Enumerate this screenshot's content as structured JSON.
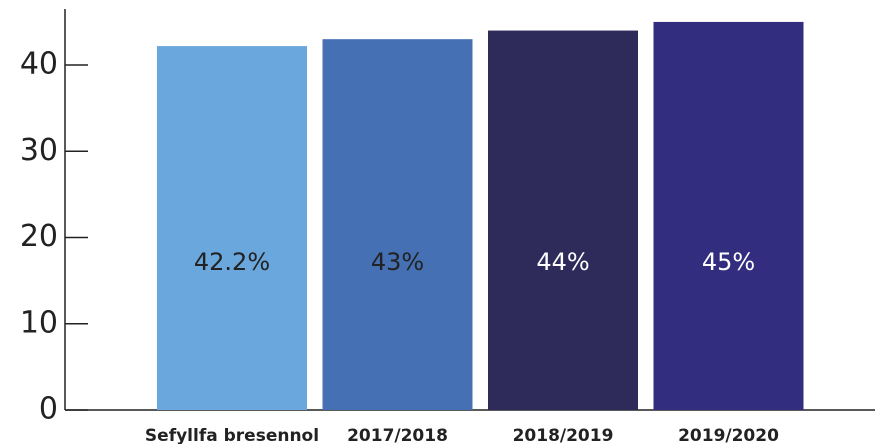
{
  "chart_data": {
    "type": "bar",
    "categories": [
      "Sefyllfa bresennol",
      "2017/2018",
      "2018/2019",
      "2019/2020"
    ],
    "values": [
      42.2,
      43,
      44,
      45
    ],
    "value_labels": [
      "42.2%",
      "43%",
      "44%",
      "45%"
    ],
    "colors": [
      "#69a7dc",
      "#4570b3",
      "#2e2a5a",
      "#322d7e"
    ],
    "value_label_colors": [
      "#222222",
      "#222222",
      "#ffffff",
      "#ffffff"
    ],
    "ylim": [
      0,
      46.5
    ],
    "yticks": [
      0,
      10,
      20,
      30,
      40
    ],
    "grid": false
  }
}
